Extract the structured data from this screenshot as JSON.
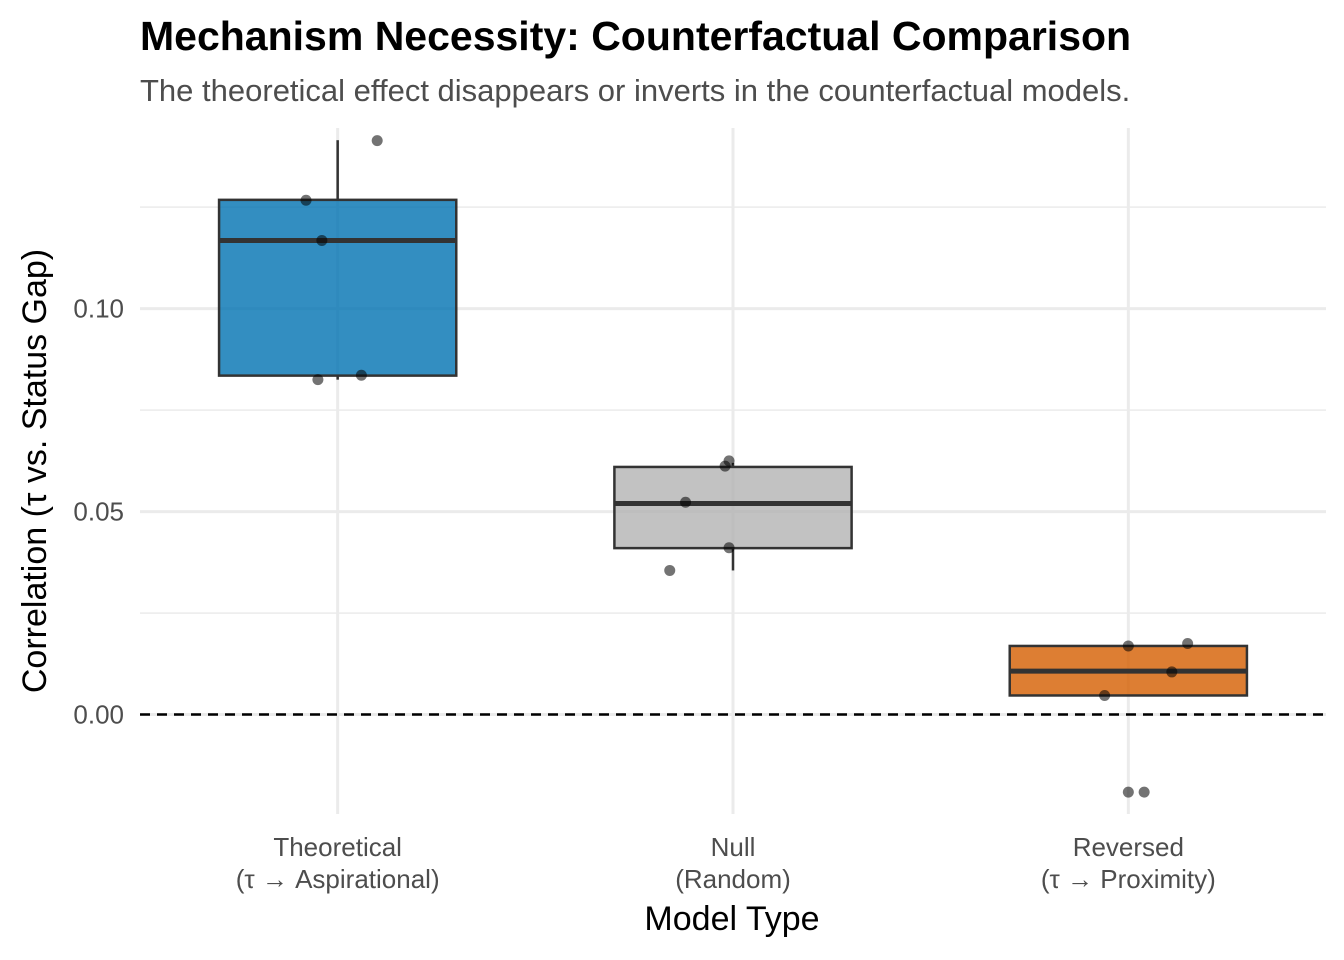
{
  "chart_data": {
    "type": "box",
    "title": "Mechanism Necessity: Counterfactual Comparison",
    "subtitle": "The theoretical effect disappears or inverts in the counterfactual models.",
    "xlabel": "Model Type",
    "ylabel": "Correlation (τ vs. Status Gap)",
    "ylim": [
      -0.0245,
      0.1445
    ],
    "y_ticks": [
      0.0,
      0.05,
      0.1
    ],
    "y_tick_labels": [
      "0.00",
      "0.05",
      "0.10"
    ],
    "reference_line": {
      "y": 0.0,
      "style": "dashed"
    },
    "grid": true,
    "categories": [
      {
        "label_line1": "Theoretical",
        "label_line2": "(τ → Aspirational)",
        "color": "#0072B2",
        "q1": 0.0835,
        "median": 0.1168,
        "q3": 0.1268,
        "whisker_low": 0.0825,
        "whisker_high": 0.1415,
        "points": [
          {
            "jitter": 0.1,
            "y": 0.1414
          },
          {
            "jitter": -0.08,
            "y": 0.1267
          },
          {
            "jitter": -0.04,
            "y": 0.1168
          },
          {
            "jitter": -0.05,
            "y": 0.0825
          },
          {
            "jitter": 0.06,
            "y": 0.0836
          }
        ]
      },
      {
        "label_line1": "Null",
        "label_line2": "(Random)",
        "color": "#B3B3B3",
        "q1": 0.041,
        "median": 0.052,
        "q3": 0.061,
        "whisker_low": 0.0355,
        "whisker_high": 0.062,
        "points": [
          {
            "jitter": -0.01,
            "y": 0.0625
          },
          {
            "jitter": -0.02,
            "y": 0.0612
          },
          {
            "jitter": -0.12,
            "y": 0.0523
          },
          {
            "jitter": -0.01,
            "y": 0.0411
          },
          {
            "jitter": -0.16,
            "y": 0.0355
          }
        ]
      },
      {
        "label_line1": "Reversed",
        "label_line2": "(τ → Proximity)",
        "color": "#D55E00",
        "q1": 0.0047,
        "median": 0.0107,
        "q3": 0.0169,
        "whisker_low": 0.0047,
        "whisker_high": 0.0169,
        "points": [
          {
            "jitter": 0.15,
            "y": 0.0175
          },
          {
            "jitter": 0.0,
            "y": 0.0169
          },
          {
            "jitter": 0.11,
            "y": 0.0105
          },
          {
            "jitter": -0.06,
            "y": 0.0047
          },
          {
            "jitter": 0.0,
            "y": -0.0191
          },
          {
            "jitter": 0.04,
            "y": -0.0191
          }
        ]
      }
    ]
  }
}
